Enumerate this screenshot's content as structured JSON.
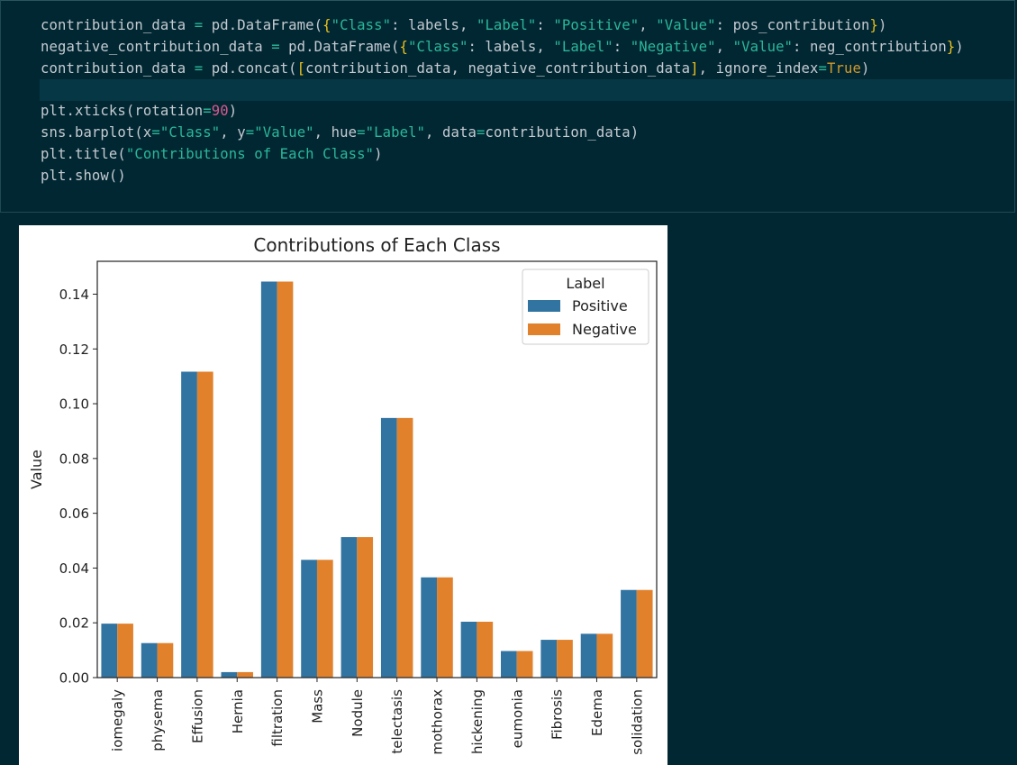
{
  "code_cell": {
    "lines": [
      [
        [
          "contribution_data ",
          ""
        ],
        [
          "=",
          "op"
        ],
        [
          " pd.DataFrame(",
          ""
        ],
        [
          "{",
          "b1"
        ],
        [
          "\"Class\"",
          "str"
        ],
        [
          ": labels, ",
          ""
        ],
        [
          "\"Label\"",
          "str"
        ],
        [
          ": ",
          ""
        ],
        [
          "\"Positive\"",
          "str"
        ],
        [
          ", ",
          ""
        ],
        [
          "\"Value\"",
          "str"
        ],
        [
          ": pos_contribution",
          ""
        ],
        [
          "}",
          "b1"
        ],
        [
          ")",
          ""
        ]
      ],
      [
        [
          "negative_contribution_data ",
          ""
        ],
        [
          "=",
          "op"
        ],
        [
          " pd.DataFrame(",
          ""
        ],
        [
          "{",
          "b1"
        ],
        [
          "\"Class\"",
          "str"
        ],
        [
          ": labels, ",
          ""
        ],
        [
          "\"Label\"",
          "str"
        ],
        [
          ": ",
          ""
        ],
        [
          "\"Negative\"",
          "str"
        ],
        [
          ", ",
          ""
        ],
        [
          "\"Value\"",
          "str"
        ],
        [
          ": neg_contribution",
          ""
        ],
        [
          "}",
          "b1"
        ],
        [
          ")",
          ""
        ]
      ],
      [
        [
          "contribution_data ",
          ""
        ],
        [
          "=",
          "op"
        ],
        [
          " pd.concat(",
          ""
        ],
        [
          "[",
          "b1"
        ],
        [
          "contribution_data, negative_contribution_data",
          ""
        ],
        [
          "]",
          "b1"
        ],
        [
          ", ignore_index",
          ""
        ],
        [
          "=",
          "op"
        ],
        [
          "True",
          "kw"
        ],
        [
          ")",
          ""
        ]
      ],
      [],
      [
        [
          "plt.xticks(rotation",
          ""
        ],
        [
          "=",
          "op"
        ],
        [
          "90",
          "num"
        ],
        [
          ")",
          ""
        ]
      ],
      [
        [
          "sns.barplot(x",
          ""
        ],
        [
          "=",
          "op"
        ],
        [
          "\"Class\"",
          "str"
        ],
        [
          ", y",
          ""
        ],
        [
          "=",
          "op"
        ],
        [
          "\"Value\"",
          "str"
        ],
        [
          ", hue",
          ""
        ],
        [
          "=",
          "op"
        ],
        [
          "\"Label\"",
          "str"
        ],
        [
          ", data",
          ""
        ],
        [
          "=",
          "op"
        ],
        [
          "contribution_data)",
          ""
        ]
      ],
      [
        [
          "plt.title(",
          ""
        ],
        [
          "\"Contributions of Each Class\"",
          "str"
        ],
        [
          ")",
          ""
        ]
      ],
      [
        [
          "plt.show()",
          ""
        ]
      ]
    ]
  },
  "chart_data": {
    "type": "bar",
    "title": "Contributions of Each Class",
    "xlabel": "",
    "ylabel": "Value",
    "ylim": [
      0,
      0.152
    ],
    "yticks": [
      "0.00",
      "0.02",
      "0.04",
      "0.06",
      "0.08",
      "0.10",
      "0.12",
      "0.14"
    ],
    "categories": [
      "Cardiomegaly",
      "Emphysema",
      "Effusion",
      "Hernia",
      "Infiltration",
      "Mass",
      "Nodule",
      "Atelectasis",
      "Pneumothorax",
      "Pleural_Thickening",
      "Pneumonia",
      "Fibrosis",
      "Edema",
      "Consolidation"
    ],
    "visible_tick_labels": [
      "iomegaly",
      "physema",
      "Effusion",
      "Hernia",
      "filtration",
      "Mass",
      "Nodule",
      "telectasis",
      "mothorax",
      "hickening",
      "eumonia",
      "Fibrosis",
      "Edema",
      "solidation"
    ],
    "series": [
      {
        "name": "Positive",
        "color": "#3274a1",
        "values": [
          0.0197,
          0.0126,
          0.1117,
          0.002,
          0.1446,
          0.043,
          0.0513,
          0.0948,
          0.0366,
          0.0204,
          0.0097,
          0.0138,
          0.016,
          0.032
        ]
      },
      {
        "name": "Negative",
        "color": "#e1812c",
        "values": [
          0.0197,
          0.0126,
          0.1117,
          0.002,
          0.1446,
          0.043,
          0.0513,
          0.0948,
          0.0366,
          0.0204,
          0.0097,
          0.0138,
          0.016,
          0.032
        ]
      }
    ],
    "legend": {
      "title": "Label",
      "placement": "top-right"
    },
    "grid": false
  }
}
